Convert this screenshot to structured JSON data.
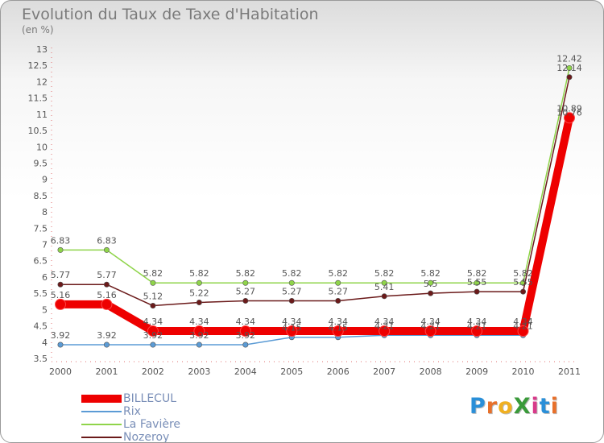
{
  "title": "Evolution du Taux de Taxe d'Habitation",
  "subtitle": "(en %)",
  "logo": {
    "text": "ProXiti",
    "letters": [
      "P",
      "r",
      "o",
      "X",
      "i",
      "t",
      "i"
    ],
    "colors": [
      "#2a8fd8",
      "#e8702a",
      "#f0b020",
      "#3a9a3a",
      "#d83a8a",
      "#2a8fd8",
      "#e8702a"
    ]
  },
  "chart_data": {
    "type": "line",
    "title": "Evolution du Taux de Taxe d'Habitation",
    "ylabel": "(en %)",
    "xlabel": "",
    "x": [
      "2000",
      "2001",
      "2002",
      "2003",
      "2004",
      "2005",
      "2006",
      "2007",
      "2008",
      "2009",
      "2010",
      "2011"
    ],
    "ylim": [
      3.5,
      13
    ],
    "yticks": [
      "3.5",
      "4",
      "4.5",
      "5",
      "5.5",
      "6",
      "6.5",
      "7",
      "7.5",
      "8",
      "8.5",
      "9",
      "9.5",
      "10",
      "10.5",
      "11",
      "11.5",
      "12",
      "12.5",
      "13"
    ],
    "grid": false,
    "legend_position": "bottom-left",
    "series": [
      {
        "name": "BILLECUL",
        "color": "#ee0000",
        "values": [
          5.16,
          5.16,
          4.34,
          4.34,
          4.34,
          4.34,
          4.34,
          4.34,
          4.34,
          4.34,
          4.34,
          10.89
        ],
        "labels": [
          "5.16",
          "5.16",
          "4.34",
          "4.34",
          "4.34",
          "4.34",
          "4.34",
          "4.34",
          "4.34",
          "4.34",
          "4.34",
          "10.89"
        ]
      },
      {
        "name": "Rix",
        "color": "#5b9bd5",
        "values": [
          3.92,
          3.92,
          3.92,
          3.92,
          3.92,
          4.15,
          4.15,
          4.21,
          4.21,
          4.21,
          4.21,
          10.76
        ],
        "labels": [
          "3.92",
          "3.92",
          "3.92",
          "3.92",
          "3.92",
          "4.15",
          "4.15",
          "4.21",
          "4.21",
          "4.21",
          "4.21",
          "10.76"
        ]
      },
      {
        "name": "La Favière",
        "color": "#8fd44a",
        "values": [
          6.83,
          6.83,
          5.82,
          5.82,
          5.82,
          5.82,
          5.82,
          5.82,
          5.82,
          5.82,
          5.82,
          12.42
        ],
        "labels": [
          "6.83",
          "6.83",
          "5.82",
          "5.82",
          "5.82",
          "5.82",
          "5.82",
          "5.82",
          "5.82",
          "5.82",
          "5.82",
          "12.42"
        ]
      },
      {
        "name": "Nozeroy",
        "color": "#6b1a1a",
        "values": [
          5.77,
          5.77,
          5.12,
          5.22,
          5.27,
          5.27,
          5.27,
          5.41,
          5.5,
          5.55,
          5.55,
          12.14
        ],
        "labels": [
          "5.77",
          "5.77",
          "5.12",
          "5.22",
          "5.27",
          "5.27",
          "5.27",
          "5.41",
          "5.5",
          "5.55",
          "5.55",
          "12.14"
        ]
      }
    ]
  }
}
